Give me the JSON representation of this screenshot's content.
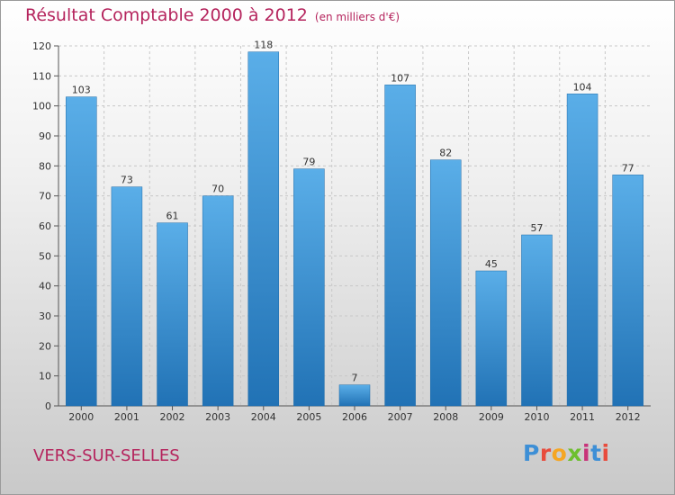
{
  "chart_data": {
    "type": "bar",
    "title": "Résultat Comptable 2000 à 2012",
    "unit_label": "(en milliers d'€)",
    "categories": [
      "2000",
      "2001",
      "2002",
      "2003",
      "2004",
      "2005",
      "2006",
      "2007",
      "2008",
      "2009",
      "2010",
      "2011",
      "2012"
    ],
    "values": [
      103,
      73,
      61,
      70,
      118,
      79,
      7,
      107,
      82,
      45,
      57,
      104,
      77
    ],
    "yticks": [
      0,
      10,
      20,
      30,
      40,
      50,
      60,
      70,
      80,
      90,
      100,
      110,
      120
    ],
    "ylim": [
      0,
      120
    ],
    "xlabel": "",
    "ylabel": "",
    "grid": true
  },
  "place_name": "VERS-SUR-SELLES",
  "logo": {
    "text": "Proxiti",
    "letter_colors": [
      "#3d8fd6",
      "#e84c3d",
      "#f5a623",
      "#6dbf2f",
      "#c8327a",
      "#3d8fd6",
      "#e84c3d"
    ]
  },
  "colors": {
    "title": "#b5245d",
    "bar_top": "#5aaee8",
    "bar_bottom": "#2172b5",
    "grid": "#c8c8c8"
  }
}
